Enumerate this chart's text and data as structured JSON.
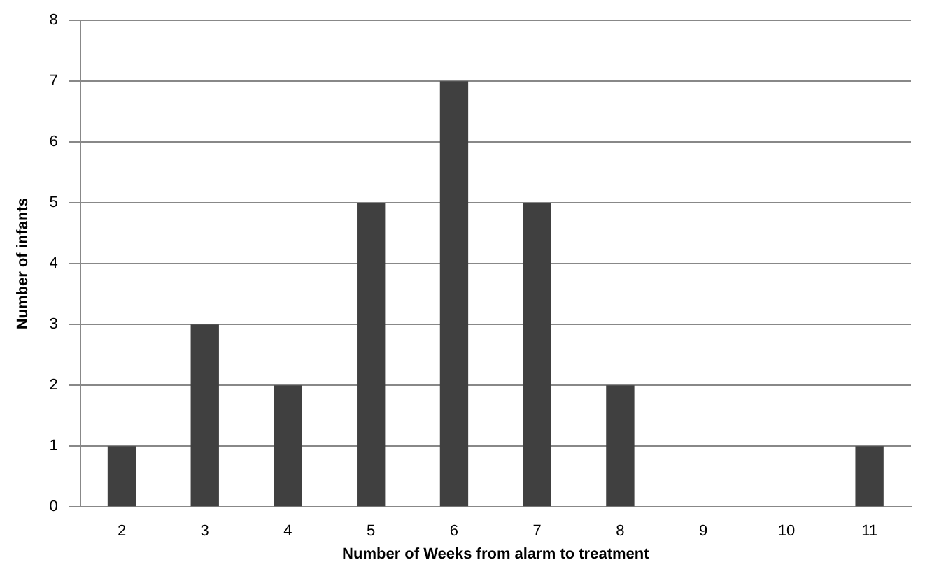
{
  "chart_data": {
    "type": "bar",
    "xlabel": "Number of Weeks from alarm to treatment",
    "ylabel": "Number of infants",
    "categories": [
      "2",
      "3",
      "4",
      "5",
      "6",
      "7",
      "8",
      "9",
      "10",
      "11"
    ],
    "values": [
      1,
      3,
      2,
      5,
      7,
      5,
      2,
      0,
      0,
      1
    ],
    "color": "#404040",
    "ylim": [
      0,
      8
    ],
    "yticks": [
      0,
      1,
      2,
      3,
      4,
      5,
      6,
      7,
      8
    ],
    "grid": "y",
    "legend": false
  }
}
